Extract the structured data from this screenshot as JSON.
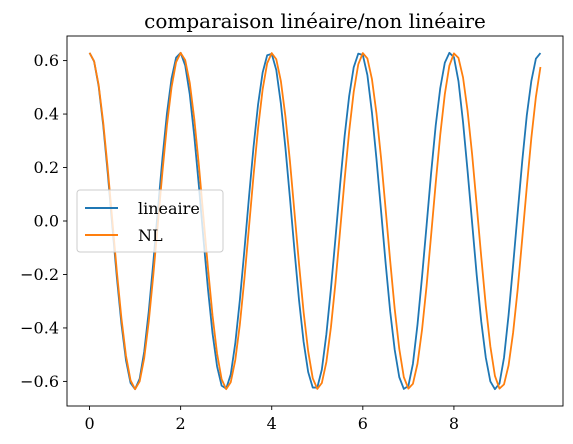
{
  "chart_data": {
    "type": "line",
    "title": "comparaison linéaire/non linéaire",
    "xlabel": "",
    "ylabel": "",
    "xlim": [
      -0.495,
      10.395
    ],
    "ylim": [
      -0.692,
      0.692
    ],
    "xticks": [
      0,
      2,
      4,
      6,
      8
    ],
    "xtick_labels": [
      "0",
      "2",
      "4",
      "6",
      "8"
    ],
    "yticks": [
      -0.6,
      -0.4,
      -0.2,
      0.0,
      0.2,
      0.4,
      0.6
    ],
    "ytick_labels": [
      "−0.6",
      "−0.4",
      "−0.2",
      "0.0",
      "0.2",
      "0.4",
      "0.6"
    ],
    "grid": false,
    "legend_position": "center-left",
    "x": [
      0.0,
      0.1,
      0.2,
      0.3,
      0.4,
      0.5,
      0.6,
      0.7,
      0.8,
      0.9,
      1.0,
      1.1,
      1.2,
      1.3,
      1.4,
      1.5,
      1.6,
      1.7,
      1.8,
      1.9,
      2.0,
      2.1,
      2.2,
      2.3,
      2.4,
      2.5,
      2.6,
      2.7,
      2.8,
      2.9,
      3.0,
      3.1,
      3.2,
      3.3,
      3.4,
      3.5,
      3.6,
      3.7,
      3.8,
      3.9,
      4.0,
      4.1,
      4.2,
      4.3,
      4.4,
      4.5,
      4.6,
      4.7,
      4.8,
      4.9,
      5.0,
      5.1,
      5.2,
      5.3,
      5.4,
      5.5,
      5.6,
      5.7,
      5.8,
      5.9,
      6.0,
      6.1,
      6.2,
      6.3,
      6.4,
      6.5,
      6.6,
      6.7,
      6.8,
      6.9,
      7.0,
      7.1,
      7.2,
      7.3,
      7.4,
      7.5,
      7.6,
      7.7,
      7.8,
      7.9,
      8.0,
      8.1,
      8.2,
      8.3,
      8.4,
      8.5,
      8.6,
      8.7,
      8.8,
      8.9,
      9.0,
      9.1,
      9.2,
      9.3,
      9.4,
      9.5,
      9.6,
      9.7,
      9.8,
      9.9
    ],
    "series": [
      {
        "name": "lineaire",
        "color": "#1f77b4",
        "values": [
          0.629,
          0.597,
          0.504,
          0.358,
          0.178,
          -0.019,
          -0.212,
          -0.385,
          -0.521,
          -0.606,
          -0.629,
          -0.59,
          -0.489,
          -0.338,
          -0.155,
          0.042,
          0.234,
          0.403,
          0.533,
          0.611,
          0.629,
          0.582,
          0.474,
          0.317,
          0.132,
          -0.065,
          -0.255,
          -0.42,
          -0.544,
          -0.616,
          -0.627,
          -0.574,
          -0.457,
          -0.296,
          -0.109,
          0.088,
          0.276,
          0.436,
          0.555,
          0.62,
          0.625,
          0.565,
          0.44,
          0.275,
          0.086,
          -0.111,
          -0.297,
          -0.452,
          -0.565,
          -0.623,
          -0.623,
          -0.556,
          -0.423,
          -0.253,
          -0.063,
          0.134,
          0.317,
          0.467,
          0.575,
          0.626,
          0.621,
          0.546,
          0.406,
          0.231,
          0.039,
          -0.157,
          -0.337,
          -0.482,
          -0.584,
          -0.628,
          -0.617,
          -0.534,
          -0.388,
          -0.209,
          -0.016,
          0.18,
          0.357,
          0.497,
          0.592,
          0.629,
          0.613,
          0.523,
          0.37,
          0.187,
          -0.007,
          -0.202,
          -0.376,
          -0.511,
          -0.6,
          -0.629,
          -0.608,
          -0.511,
          -0.352,
          -0.165,
          0.031,
          0.224,
          0.395,
          0.524,
          0.607,
          0.628
        ]
      },
      {
        "name": "NL",
        "color": "#ff7f0e",
        "values": [
          0.629,
          0.598,
          0.509,
          0.369,
          0.195,
          0.003,
          -0.19,
          -0.364,
          -0.504,
          -0.596,
          -0.629,
          -0.6,
          -0.513,
          -0.376,
          -0.202,
          -0.01,
          0.183,
          0.359,
          0.5,
          0.594,
          0.629,
          0.602,
          0.517,
          0.381,
          0.209,
          0.017,
          -0.176,
          -0.353,
          -0.496,
          -0.592,
          -0.629,
          -0.603,
          -0.52,
          -0.387,
          -0.216,
          -0.024,
          0.169,
          0.347,
          0.492,
          0.59,
          0.628,
          0.605,
          0.524,
          0.392,
          0.223,
          0.031,
          -0.162,
          -0.341,
          -0.487,
          -0.588,
          -0.628,
          -0.606,
          -0.527,
          -0.397,
          -0.23,
          -0.038,
          0.155,
          0.335,
          0.483,
          0.586,
          0.628,
          0.608,
          0.531,
          0.402,
          0.236,
          0.045,
          -0.148,
          -0.329,
          -0.478,
          -0.584,
          -0.627,
          -0.609,
          -0.534,
          -0.407,
          -0.243,
          -0.052,
          0.141,
          0.323,
          0.474,
          0.581,
          0.627,
          0.61,
          0.537,
          0.412,
          0.249,
          0.059,
          -0.134,
          -0.317,
          -0.469,
          -0.579,
          -0.627,
          -0.611,
          -0.54,
          -0.417,
          -0.256,
          -0.066,
          0.127,
          0.311,
          0.464,
          0.576
        ]
      }
    ]
  }
}
